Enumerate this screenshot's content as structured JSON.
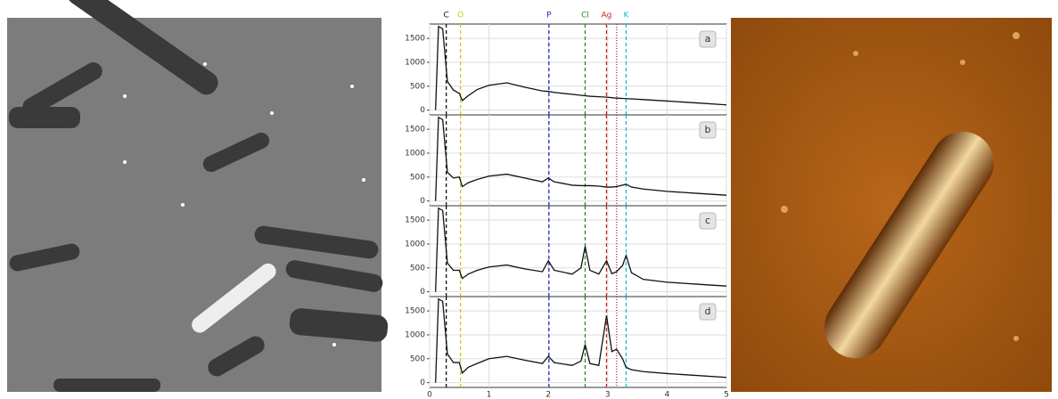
{
  "chart_data": [
    {
      "type": "line",
      "panel_label": "a",
      "color": "#111111",
      "x": [
        0.1,
        0.15,
        0.22,
        0.3,
        0.4,
        0.5,
        0.55,
        0.65,
        0.8,
        1.0,
        1.3,
        1.6,
        1.9,
        2.0,
        2.1,
        2.4,
        2.55,
        2.62,
        2.7,
        2.85,
        2.98,
        3.07,
        3.15,
        3.25,
        3.31,
        3.4,
        3.6,
        4.0,
        4.5,
        5.0
      ],
      "values": [
        0,
        1750,
        1700,
        600,
        420,
        350,
        200,
        300,
        430,
        520,
        570,
        480,
        400,
        390,
        370,
        330,
        310,
        300,
        290,
        280,
        270,
        260,
        250,
        245,
        240,
        235,
        220,
        190,
        150,
        110
      ],
      "xlim": [
        0,
        5
      ],
      "ylim": [
        -100,
        1800
      ],
      "yticks": [
        0,
        500,
        1000,
        1500
      ],
      "grid": true
    },
    {
      "type": "line",
      "panel_label": "b",
      "color": "#111111",
      "x": [
        0.1,
        0.15,
        0.22,
        0.3,
        0.4,
        0.5,
        0.55,
        0.65,
        0.8,
        1.0,
        1.3,
        1.6,
        1.9,
        2.0,
        2.1,
        2.4,
        2.55,
        2.62,
        2.7,
        2.85,
        2.98,
        3.07,
        3.15,
        3.25,
        3.31,
        3.4,
        3.6,
        4.0,
        4.5,
        5.0
      ],
      "values": [
        0,
        1750,
        1700,
        600,
        480,
        500,
        300,
        380,
        450,
        520,
        560,
        480,
        400,
        480,
        400,
        330,
        320,
        320,
        320,
        310,
        290,
        290,
        300,
        330,
        350,
        290,
        250,
        200,
        160,
        120
      ],
      "xlim": [
        0,
        5
      ],
      "ylim": [
        -100,
        1800
      ],
      "yticks": [
        0,
        500,
        1000,
        1500
      ],
      "grid": true
    },
    {
      "type": "line",
      "panel_label": "c",
      "color": "#111111",
      "x": [
        0.1,
        0.15,
        0.22,
        0.3,
        0.4,
        0.5,
        0.55,
        0.65,
        0.8,
        1.0,
        1.3,
        1.6,
        1.9,
        2.0,
        2.1,
        2.4,
        2.55,
        2.62,
        2.7,
        2.85,
        2.98,
        3.07,
        3.15,
        3.25,
        3.31,
        3.4,
        3.6,
        4.0,
        4.5,
        5.0
      ],
      "values": [
        0,
        1750,
        1700,
        600,
        450,
        450,
        280,
        370,
        450,
        520,
        560,
        480,
        420,
        650,
        450,
        370,
        500,
        950,
        450,
        370,
        650,
        380,
        420,
        550,
        760,
        400,
        260,
        200,
        160,
        120
      ],
      "xlim": [
        0,
        5
      ],
      "ylim": [
        -100,
        1800
      ],
      "yticks": [
        0,
        500,
        1000,
        1500
      ],
      "grid": true
    },
    {
      "type": "line",
      "panel_label": "d",
      "color": "#111111",
      "x": [
        0.1,
        0.15,
        0.22,
        0.3,
        0.4,
        0.5,
        0.55,
        0.65,
        0.8,
        1.0,
        1.3,
        1.6,
        1.9,
        2.0,
        2.1,
        2.4,
        2.55,
        2.62,
        2.7,
        2.85,
        2.98,
        3.07,
        3.15,
        3.25,
        3.31,
        3.4,
        3.6,
        4.0,
        4.5,
        5.0
      ],
      "values": [
        0,
        1750,
        1700,
        600,
        420,
        420,
        200,
        320,
        400,
        500,
        550,
        470,
        400,
        550,
        420,
        360,
        450,
        800,
        400,
        360,
        1400,
        650,
        700,
        500,
        320,
        270,
        230,
        190,
        150,
        110
      ],
      "xlim": [
        0,
        5
      ],
      "ylim": [
        -100,
        1800
      ],
      "yticks": [
        0,
        500,
        1000,
        1500
      ],
      "xticks": [
        0,
        1,
        2,
        3,
        4,
        5
      ],
      "grid": true
    }
  ],
  "element_lines": [
    {
      "label": "C",
      "value": 0.28,
      "color": "#111111",
      "dash": "4,3"
    },
    {
      "label": "O",
      "value": 0.52,
      "color": "#d4c21a",
      "dash": "4,3"
    },
    {
      "label": "P",
      "value": 2.01,
      "color": "#1f2fc4",
      "dash": "4,3"
    },
    {
      "label": "Cl",
      "value": 2.62,
      "color": "#1f8a2a",
      "dash": "4,3"
    },
    {
      "label": "Ag",
      "value": 2.98,
      "color": "#c42020",
      "dash": "4,3"
    },
    {
      "label": null,
      "value": 3.15,
      "color": "#c42020",
      "dash": "1,2"
    },
    {
      "label": "K",
      "value": 3.31,
      "color": "#18b8c8",
      "dash": "4,3"
    }
  ]
}
